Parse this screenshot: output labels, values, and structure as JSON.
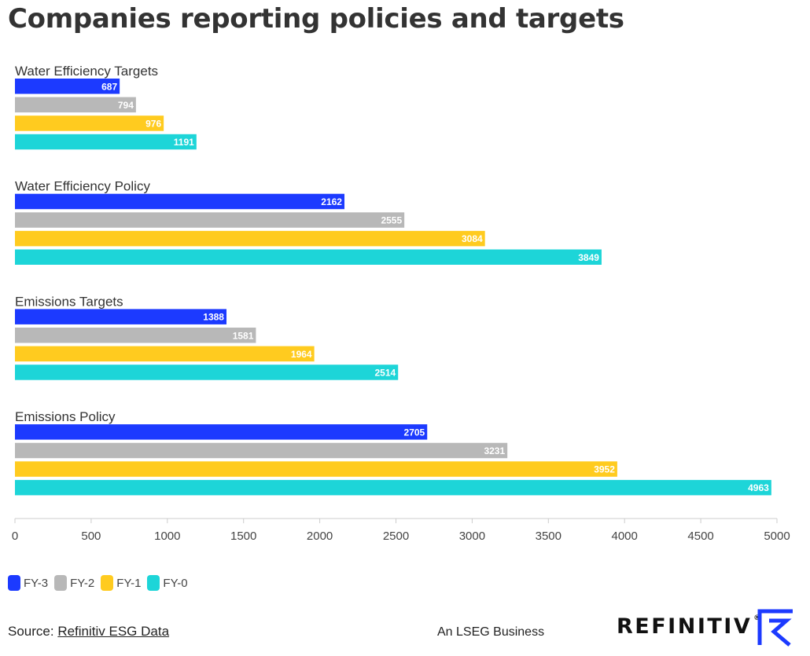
{
  "title": "Companies reporting policies and targets",
  "chart_data": {
    "type": "bar",
    "orientation": "horizontal",
    "categories": [
      "Water Efficiency Targets",
      "Water Efficiency Policy",
      "Emissions Targets",
      "Emissions Policy"
    ],
    "series": [
      {
        "name": "FY-3",
        "color": "#1c3aff",
        "values": [
          687,
          2162,
          1388,
          2705
        ]
      },
      {
        "name": "FY-2",
        "color": "#b8b8b8",
        "values": [
          794,
          2555,
          1581,
          3231
        ]
      },
      {
        "name": "FY-1",
        "color": "#ffcb1f",
        "values": [
          976,
          3084,
          1964,
          3952
        ]
      },
      {
        "name": "FY-0",
        "color": "#1dd5d8",
        "values": [
          1191,
          3849,
          2514,
          4963
        ]
      }
    ],
    "xlim": [
      0,
      5000
    ],
    "xticks": [
      0,
      500,
      1000,
      1500,
      2000,
      2500,
      3000,
      3500,
      4000,
      4500,
      5000
    ],
    "legend_position": "bottom-left",
    "grid": false
  },
  "legend": {
    "items": [
      {
        "label": "FY-3",
        "color": "#1c3aff"
      },
      {
        "label": "FY-2",
        "color": "#b8b8b8"
      },
      {
        "label": "FY-1",
        "color": "#ffcb1f"
      },
      {
        "label": "FY-0",
        "color": "#1dd5d8"
      }
    ]
  },
  "footer": {
    "source_prefix": "Source: ",
    "source_link": "Refinitiv ESG Data",
    "tagline": "An LSEG Business",
    "brand": "REFINITIV",
    "brand_reg": "®"
  }
}
